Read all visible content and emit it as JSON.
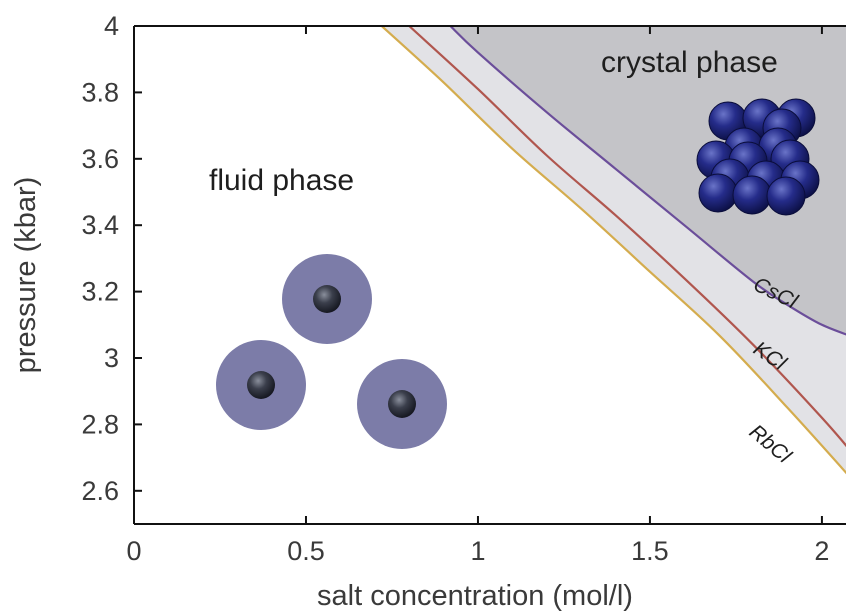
{
  "chart_data": {
    "type": "line",
    "title": "",
    "xlabel": "salt concentration (mol/l)",
    "ylabel": "pressure (kbar)",
    "xlim": [
      0,
      2.1
    ],
    "ylim": [
      2.5,
      4.0
    ],
    "x_ticks": [
      0,
      0.5,
      1,
      1.5,
      2
    ],
    "x_tick_labels": [
      "0",
      "0.5",
      "1",
      "1.5",
      "2"
    ],
    "y_ticks": [
      2.6,
      2.8,
      3.0,
      3.2,
      3.4,
      3.6,
      3.8,
      4.0
    ],
    "y_tick_labels": [
      "2.6",
      "2.8",
      "3",
      "3.2",
      "3.4",
      "3.6",
      "3.8",
      "4"
    ],
    "grid": false,
    "series": [
      {
        "name": "CsCl",
        "color": "#6b4e9a",
        "x": [
          0.92,
          1.0,
          1.2,
          1.4,
          1.6,
          1.8,
          1.9,
          2.0,
          2.1
        ],
        "y": [
          4.0,
          3.92,
          3.74,
          3.57,
          3.4,
          3.23,
          3.16,
          3.1,
          3.06
        ]
      },
      {
        "name": "KCl",
        "color": "#b0564e",
        "x": [
          0.8,
          1.0,
          1.2,
          1.4,
          1.6,
          1.8,
          2.0,
          2.1
        ],
        "y": [
          4.0,
          3.81,
          3.61,
          3.43,
          3.24,
          3.04,
          2.82,
          2.7
        ]
      },
      {
        "name": "RbCl",
        "color": "#d4ac4e",
        "x": [
          0.72,
          0.9,
          1.1,
          1.3,
          1.5,
          1.7,
          1.9,
          2.1
        ],
        "y": [
          4.0,
          3.83,
          3.63,
          3.45,
          3.26,
          3.07,
          2.85,
          2.62
        ]
      }
    ],
    "annotations": [
      "fluid phase",
      "crystal phase"
    ],
    "colors": {
      "crystal_region": "#c4c4c8",
      "intermediate_region": "#e2e2e6",
      "fluid_halo": "#7c7ca8",
      "fluid_core": "#2e3140",
      "crystal_sphere": "#1a1f6e"
    }
  }
}
